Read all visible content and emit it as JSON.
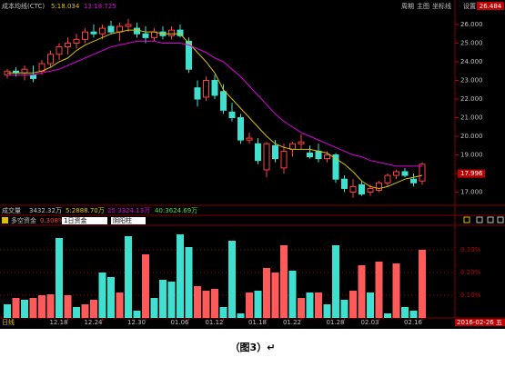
{
  "header": {
    "title": "成本均线(CTC)",
    "ma5": "5:18.034",
    "ma13": "13:18.725",
    "menu": [
      "周期",
      "主图",
      "坐标线",
      "设置"
    ]
  },
  "chart_data": [
    {
      "type": "candlestick",
      "open": [
        23.3,
        23.5,
        23.4,
        23.3,
        23.5,
        23.9,
        24.4,
        24.8,
        25.0,
        25.2,
        25.6,
        25.5,
        25.9,
        25.6,
        25.9,
        25.8,
        25.5,
        25.3,
        25.6,
        25.4,
        25.7,
        25.1,
        22.6,
        22.1,
        23.0,
        22.4,
        21.3,
        21.0,
        19.8,
        19.6,
        18.2,
        19.5,
        18.3,
        19.3,
        19.6,
        19.1,
        19.2,
        18.8,
        19.0,
        17.7,
        17.0,
        17.4,
        17.0,
        17.1,
        17.5,
        17.9,
        18.1,
        17.7,
        17.6
      ],
      "high": [
        23.6,
        23.7,
        23.8,
        23.8,
        24.1,
        24.6,
        25.0,
        25.3,
        25.5,
        25.8,
        26.0,
        26.0,
        26.2,
        26.1,
        26.3,
        26.1,
        25.9,
        25.8,
        25.9,
        25.9,
        26.0,
        25.3,
        23.0,
        23.2,
        23.3,
        22.8,
        21.8,
        21.2,
        20.2,
        19.9,
        19.7,
        19.8,
        19.6,
        19.7,
        20.1,
        19.5,
        19.6,
        19.2,
        19.1,
        17.9,
        17.7,
        17.6,
        17.4,
        17.6,
        18.0,
        18.2,
        18.3,
        18.0,
        18.6
      ],
      "low": [
        23.1,
        23.2,
        23.0,
        22.9,
        23.3,
        23.7,
        24.1,
        24.4,
        24.7,
        25.0,
        25.3,
        25.2,
        25.5,
        25.1,
        25.6,
        25.3,
        25.0,
        25.1,
        25.2,
        25.2,
        25.3,
        23.4,
        21.6,
        21.9,
        22.0,
        21.2,
        20.8,
        19.6,
        19.6,
        18.5,
        17.8,
        18.6,
        18.0,
        18.9,
        19.3,
        18.8,
        18.6,
        18.6,
        17.5,
        17.0,
        16.7,
        16.8,
        16.8,
        17.0,
        17.3,
        17.7,
        17.8,
        17.3,
        17.4
      ],
      "close": [
        23.5,
        23.4,
        23.6,
        23.1,
        23.9,
        24.4,
        24.8,
        25.0,
        25.2,
        25.6,
        25.5,
        25.8,
        25.6,
        25.9,
        26.0,
        25.5,
        25.3,
        25.6,
        25.4,
        25.7,
        25.4,
        23.6,
        22.0,
        23.0,
        22.2,
        21.4,
        21.0,
        19.8,
        19.9,
        18.7,
        19.6,
        18.8,
        19.2,
        19.6,
        19.7,
        18.9,
        18.8,
        19.0,
        17.7,
        17.2,
        17.3,
        16.9,
        17.2,
        17.5,
        17.9,
        18.1,
        17.9,
        17.5,
        18.5
      ],
      "series": [
        {
          "color": "#d8c000",
          "values": [
            23.4,
            23.4,
            23.4,
            23.4,
            23.5,
            23.7,
            24.0,
            24.2,
            24.6,
            24.9,
            25.1,
            25.3,
            25.5,
            25.6,
            25.7,
            25.7,
            25.6,
            25.6,
            25.5,
            25.5,
            25.5,
            25.0,
            24.5,
            24.0,
            23.4,
            22.5,
            22.0,
            21.5,
            21.0,
            20.5,
            20.0,
            19.6,
            19.4,
            19.3,
            19.3,
            19.3,
            19.2,
            19.1,
            18.8,
            18.5,
            18.1,
            17.6,
            17.3,
            17.2,
            17.3,
            17.5,
            17.7,
            17.8,
            17.9
          ]
        },
        {
          "color": "#e000e0",
          "values": [
            23.3,
            23.3,
            23.3,
            23.3,
            23.4,
            23.5,
            23.6,
            23.8,
            24.0,
            24.2,
            24.4,
            24.6,
            24.8,
            24.9,
            25.0,
            25.1,
            25.1,
            25.1,
            25.0,
            25.0,
            25.0,
            24.9,
            24.7,
            24.5,
            24.2,
            24.0,
            23.6,
            23.2,
            22.7,
            22.2,
            21.7,
            21.2,
            20.8,
            20.5,
            20.2,
            20.0,
            19.8,
            19.6,
            19.4,
            19.2,
            19.0,
            18.9,
            18.7,
            18.6,
            18.5,
            18.4,
            18.4,
            18.4,
            18.4
          ]
        }
      ],
      "up_color": "#ff4040",
      "down_color": "#40e0d0",
      "ylim": [
        16.49,
        26.73
      ],
      "yticks": [
        {
          "value": 17,
          "label": "17.000"
        },
        {
          "value": 18,
          "label": "18.000"
        },
        {
          "value": 19,
          "label": "19.000"
        },
        {
          "value": 20,
          "label": "20.000"
        },
        {
          "value": 21,
          "label": "21.000"
        },
        {
          "value": 22,
          "label": "22.000"
        },
        {
          "value": 23,
          "label": "23.000"
        },
        {
          "value": 24,
          "label": "24.000"
        },
        {
          "value": 25,
          "label": "25.000"
        },
        {
          "value": 26,
          "label": "26.000"
        }
      ],
      "last_price": {
        "value": 17.996,
        "label": "17.996"
      },
      "axis_top_label": "26.484"
    },
    {
      "type": "bar",
      "volume": {
        "label": "成交量",
        "value": "3432.32万",
        "ma": [
          "5:2888.70万",
          "25:3324.13万",
          "40:3624.69万"
        ]
      },
      "title": "多空资金",
      "value_text": "0.308%",
      "selectors": [
        "1日资金",
        "阴阳柱"
      ],
      "values": [
        0.06,
        0.088,
        0.08,
        0.088,
        0.1,
        0.104,
        0.352,
        0.1,
        0.048,
        0.06,
        0.08,
        0.2,
        0.18,
        0.112,
        0.36,
        0.032,
        0.28,
        0.088,
        0.168,
        0.16,
        0.368,
        0.312,
        0.14,
        0.12,
        0.128,
        0.048,
        0.34,
        0.02,
        0.112,
        0.12,
        0.22,
        0.2,
        0.32,
        0.208,
        0.088,
        0.112,
        0.112,
        0.06,
        0.32,
        0.08,
        0.12,
        0.232,
        0.112,
        0.248,
        0.02,
        0.24,
        0.048,
        0.032,
        0.3
      ],
      "colors": [
        "#40e0d0",
        "#ff5a5a",
        "#40e0d0",
        "#ff5a5a",
        "#ff5a5a",
        "#ff5a5a",
        "#40e0d0",
        "#ff5a5a",
        "#40e0d0",
        "#ff5a5a",
        "#ff5a5a",
        "#40e0d0",
        "#40e0d0",
        "#ff5a5a",
        "#40e0d0",
        "#40e0d0",
        "#ff5a5a",
        "#40e0d0",
        "#40e0d0",
        "#40e0d0",
        "#40e0d0",
        "#40e0d0",
        "#ff5a5a",
        "#ff5a5a",
        "#ff5a5a",
        "#40e0d0",
        "#40e0d0",
        "#40e0d0",
        "#ff5a5a",
        "#40e0d0",
        "#ff5a5a",
        "#ff5a5a",
        "#ff5a5a",
        "#40e0d0",
        "#ff5a5a",
        "#40e0d0",
        "#ff5a5a",
        "#40e0d0",
        "#40e0d0",
        "#40e0d0",
        "#ff5a5a",
        "#ff5a5a",
        "#40e0d0",
        "#ff5a5a",
        "#40e0d0",
        "#ff5a5a",
        "#40e0d0",
        "#40e0d0",
        "#ff5a5a"
      ],
      "ylim": [
        0,
        0.4
      ],
      "yticks": [
        {
          "value": 0.1,
          "label": "0.10%"
        },
        {
          "value": 0.2,
          "label": "0.20%"
        },
        {
          "value": 0.3,
          "label": "0.30%"
        }
      ],
      "categories": [
        null,
        null,
        null,
        null,
        null,
        null,
        null,
        "12.18",
        null,
        null,
        null,
        "12.24",
        null,
        null,
        null,
        null,
        "12.30",
        null,
        null,
        null,
        null,
        "01.06",
        null,
        null,
        null,
        "01.12",
        null,
        null,
        null,
        null,
        "01.18",
        null,
        null,
        null,
        "01.22",
        null,
        null,
        null,
        null,
        "01.28",
        null,
        null,
        null,
        "02.03",
        null,
        null,
        null,
        null,
        "02.16"
      ],
      "period": "日线",
      "date_label": "2016-02-26 五"
    }
  ],
  "caption": "（图3）↵"
}
